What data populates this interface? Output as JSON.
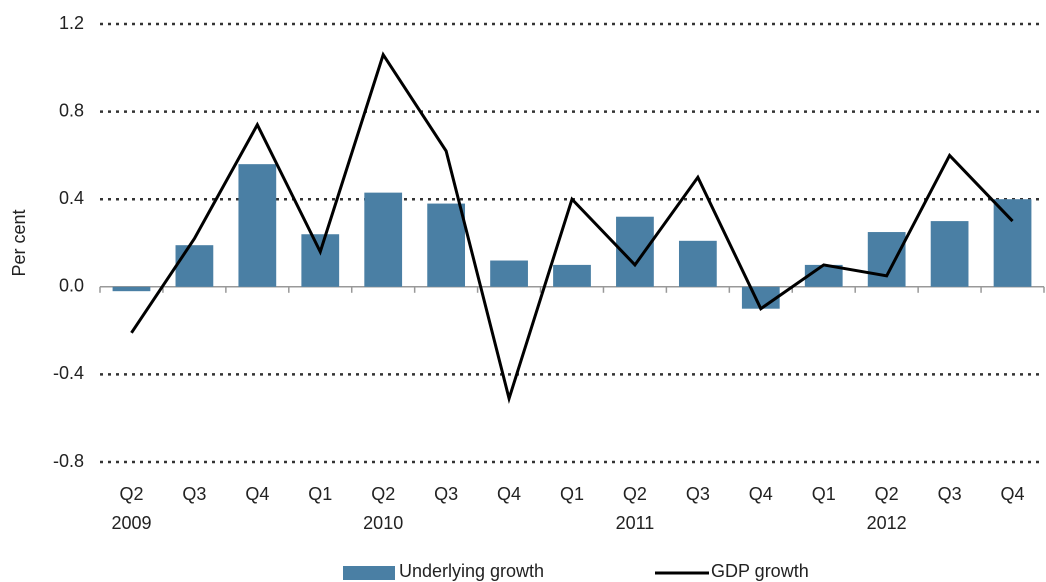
{
  "chart_data": {
    "type": "bar_line",
    "y_label": "Per cent",
    "categories": [
      "Q2",
      "Q3",
      "Q4",
      "Q1",
      "Q2",
      "Q3",
      "Q4",
      "Q1",
      "Q2",
      "Q3",
      "Q4",
      "Q1",
      "Q2",
      "Q3",
      "Q4"
    ],
    "years": [
      "2009",
      null,
      null,
      null,
      "2010",
      null,
      null,
      null,
      "2011",
      null,
      null,
      null,
      "2012",
      null,
      null
    ],
    "series": [
      {
        "name": "Underlying growth",
        "type": "bar",
        "color": "#4a7fa4",
        "values": [
          -0.02,
          0.19,
          0.56,
          0.24,
          0.43,
          0.38,
          0.12,
          0.1,
          0.32,
          0.21,
          -0.1,
          0.1,
          0.25,
          0.3,
          0.4
        ]
      },
      {
        "name": "GDP growth",
        "type": "line",
        "color": "#000000",
        "values": [
          -0.21,
          0.22,
          0.74,
          0.16,
          1.06,
          0.62,
          -0.51,
          0.4,
          0.1,
          0.5,
          -0.1,
          0.1,
          0.05,
          0.6,
          0.3
        ]
      }
    ],
    "ylim": [
      -0.8,
      1.2
    ],
    "yticks": [
      -0.8,
      -0.4,
      {
        "value": 0,
        "label": "0.0"
      },
      0.4,
      0.8,
      1.2
    ],
    "grid": true
  }
}
